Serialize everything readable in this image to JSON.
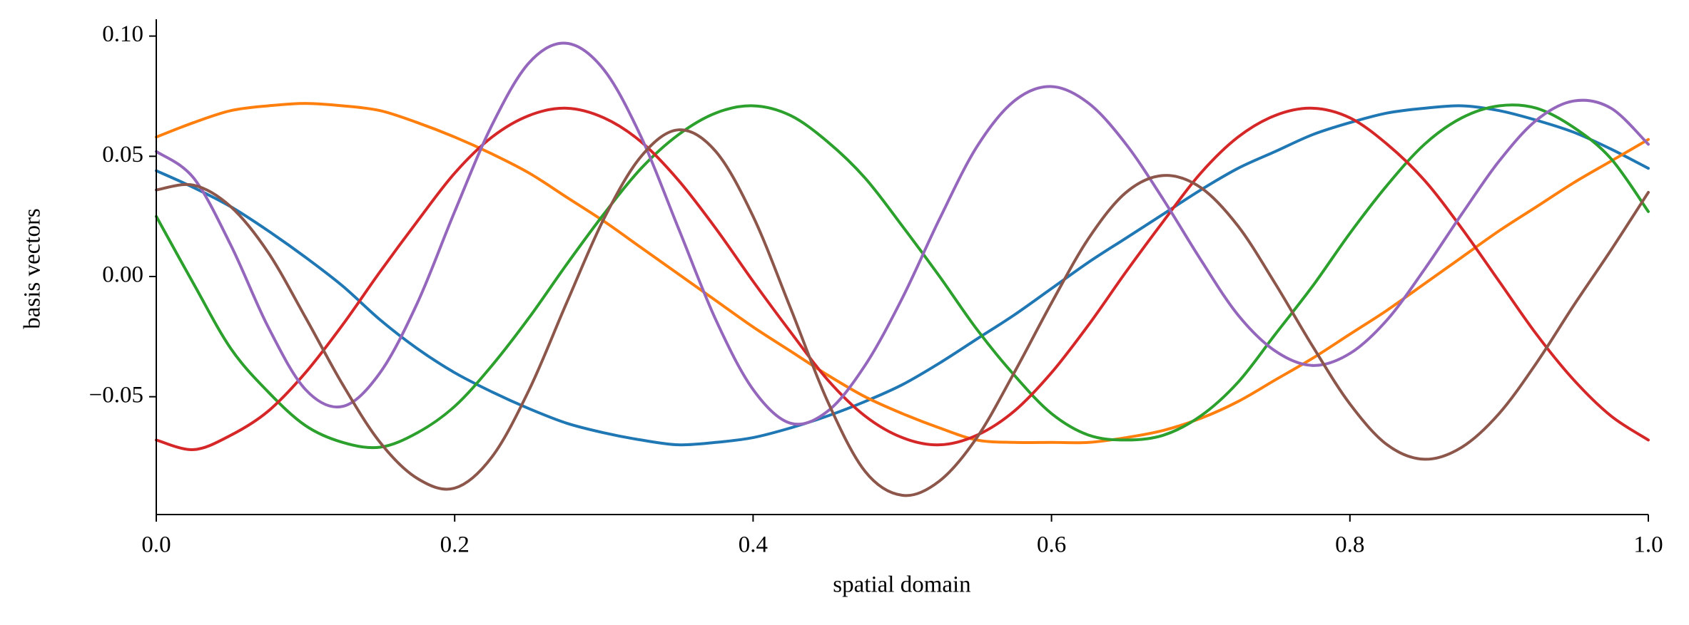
{
  "chart_data": {
    "type": "line",
    "x_label": "spatial domain",
    "y_label": "basis vectors",
    "x": [
      0,
      0.025,
      0.05,
      0.075,
      0.1,
      0.125,
      0.15,
      0.175,
      0.2,
      0.225,
      0.25,
      0.275,
      0.3,
      0.325,
      0.35,
      0.375,
      0.4,
      0.425,
      0.45,
      0.475,
      0.5,
      0.525,
      0.55,
      0.575,
      0.6,
      0.625,
      0.65,
      0.675,
      0.7,
      0.725,
      0.75,
      0.775,
      0.8,
      0.825,
      0.85,
      0.875,
      0.9,
      0.925,
      0.95,
      0.975,
      1
    ],
    "series": [
      {
        "color": "#1f77b4",
        "values": [
          0.044,
          0.037,
          0.029,
          0.019,
          0.008,
          -0.004,
          -0.018,
          -0.03,
          -0.04,
          -0.048,
          -0.055,
          -0.061,
          -0.065,
          -0.068,
          -0.07,
          -0.069,
          -0.067,
          -0.063,
          -0.058,
          -0.052,
          -0.045,
          -0.036,
          -0.026,
          -0.016,
          -0.005,
          0.006,
          0.016,
          0.026,
          0.036,
          0.045,
          0.052,
          0.059,
          0.064,
          0.068,
          0.07,
          0.071,
          0.069,
          0.065,
          0.06,
          0.053,
          0.045
        ]
      },
      {
        "color": "#ff7f0e",
        "values": [
          0.058,
          0.064,
          0.069,
          0.071,
          0.072,
          0.071,
          0.069,
          0.064,
          0.058,
          0.051,
          0.043,
          0.033,
          0.023,
          0.012,
          0.001,
          -0.01,
          -0.021,
          -0.031,
          -0.041,
          -0.05,
          -0.057,
          -0.063,
          -0.068,
          -0.069,
          -0.069,
          -0.069,
          -0.067,
          -0.064,
          -0.059,
          -0.052,
          -0.043,
          -0.034,
          -0.024,
          -0.014,
          -0.003,
          0.008,
          0.019,
          0.029,
          0.039,
          0.048,
          0.057
        ]
      },
      {
        "color": "#2ca02c",
        "values": [
          0.025,
          -0.003,
          -0.03,
          -0.048,
          -0.062,
          -0.069,
          -0.071,
          -0.065,
          -0.054,
          -0.037,
          -0.017,
          0.005,
          0.026,
          0.045,
          0.059,
          0.068,
          0.071,
          0.067,
          0.056,
          0.041,
          0.021,
          0.0,
          -0.022,
          -0.041,
          -0.057,
          -0.066,
          -0.068,
          -0.066,
          -0.058,
          -0.044,
          -0.024,
          -0.004,
          0.018,
          0.038,
          0.055,
          0.066,
          0.071,
          0.07,
          0.062,
          0.049,
          0.027
        ]
      },
      {
        "color": "#d62728",
        "values": [
          -0.068,
          -0.072,
          -0.066,
          -0.056,
          -0.04,
          -0.02,
          0.002,
          0.023,
          0.043,
          0.058,
          0.067,
          0.07,
          0.066,
          0.056,
          0.04,
          0.02,
          -0.002,
          -0.023,
          -0.043,
          -0.058,
          -0.067,
          -0.07,
          -0.066,
          -0.056,
          -0.04,
          -0.02,
          0.002,
          0.023,
          0.043,
          0.058,
          0.067,
          0.07,
          0.066,
          0.055,
          0.04,
          0.02,
          -0.002,
          -0.024,
          -0.043,
          -0.058,
          -0.068
        ]
      },
      {
        "color": "#9467bd",
        "values": [
          0.052,
          0.041,
          0.013,
          -0.021,
          -0.047,
          -0.054,
          -0.04,
          -0.011,
          0.027,
          0.063,
          0.089,
          0.097,
          0.086,
          0.058,
          0.02,
          -0.018,
          -0.047,
          -0.061,
          -0.056,
          -0.037,
          -0.009,
          0.024,
          0.054,
          0.073,
          0.079,
          0.072,
          0.055,
          0.032,
          0.007,
          -0.016,
          -0.031,
          -0.037,
          -0.032,
          -0.018,
          0.003,
          0.026,
          0.048,
          0.065,
          0.073,
          0.07,
          0.055
        ]
      },
      {
        "color": "#8c564b",
        "values": [
          0.036,
          0.038,
          0.029,
          0.01,
          -0.017,
          -0.045,
          -0.069,
          -0.084,
          -0.088,
          -0.075,
          -0.047,
          -0.011,
          0.024,
          0.05,
          0.061,
          0.052,
          0.025,
          -0.013,
          -0.052,
          -0.081,
          -0.091,
          -0.085,
          -0.067,
          -0.04,
          -0.011,
          0.016,
          0.035,
          0.042,
          0.037,
          0.021,
          -0.003,
          -0.029,
          -0.053,
          -0.07,
          -0.076,
          -0.071,
          -0.057,
          -0.036,
          -0.012,
          0.011,
          0.035
        ]
      }
    ],
    "xlim": [
      0,
      1
    ],
    "ylim": [
      -0.099,
      0.107
    ],
    "xticks": [
      {
        "value": 0,
        "label": "0.0"
      },
      0.2,
      0.4,
      0.6,
      0.8,
      {
        "value": 1,
        "label": "1.0"
      }
    ],
    "yticks": [
      {
        "value": -0.05,
        "label": "−0.05"
      },
      {
        "value": 0,
        "label": "0.00"
      },
      0.05,
      {
        "value": 0.1,
        "label": "0.10"
      }
    ],
    "grid": false
  }
}
